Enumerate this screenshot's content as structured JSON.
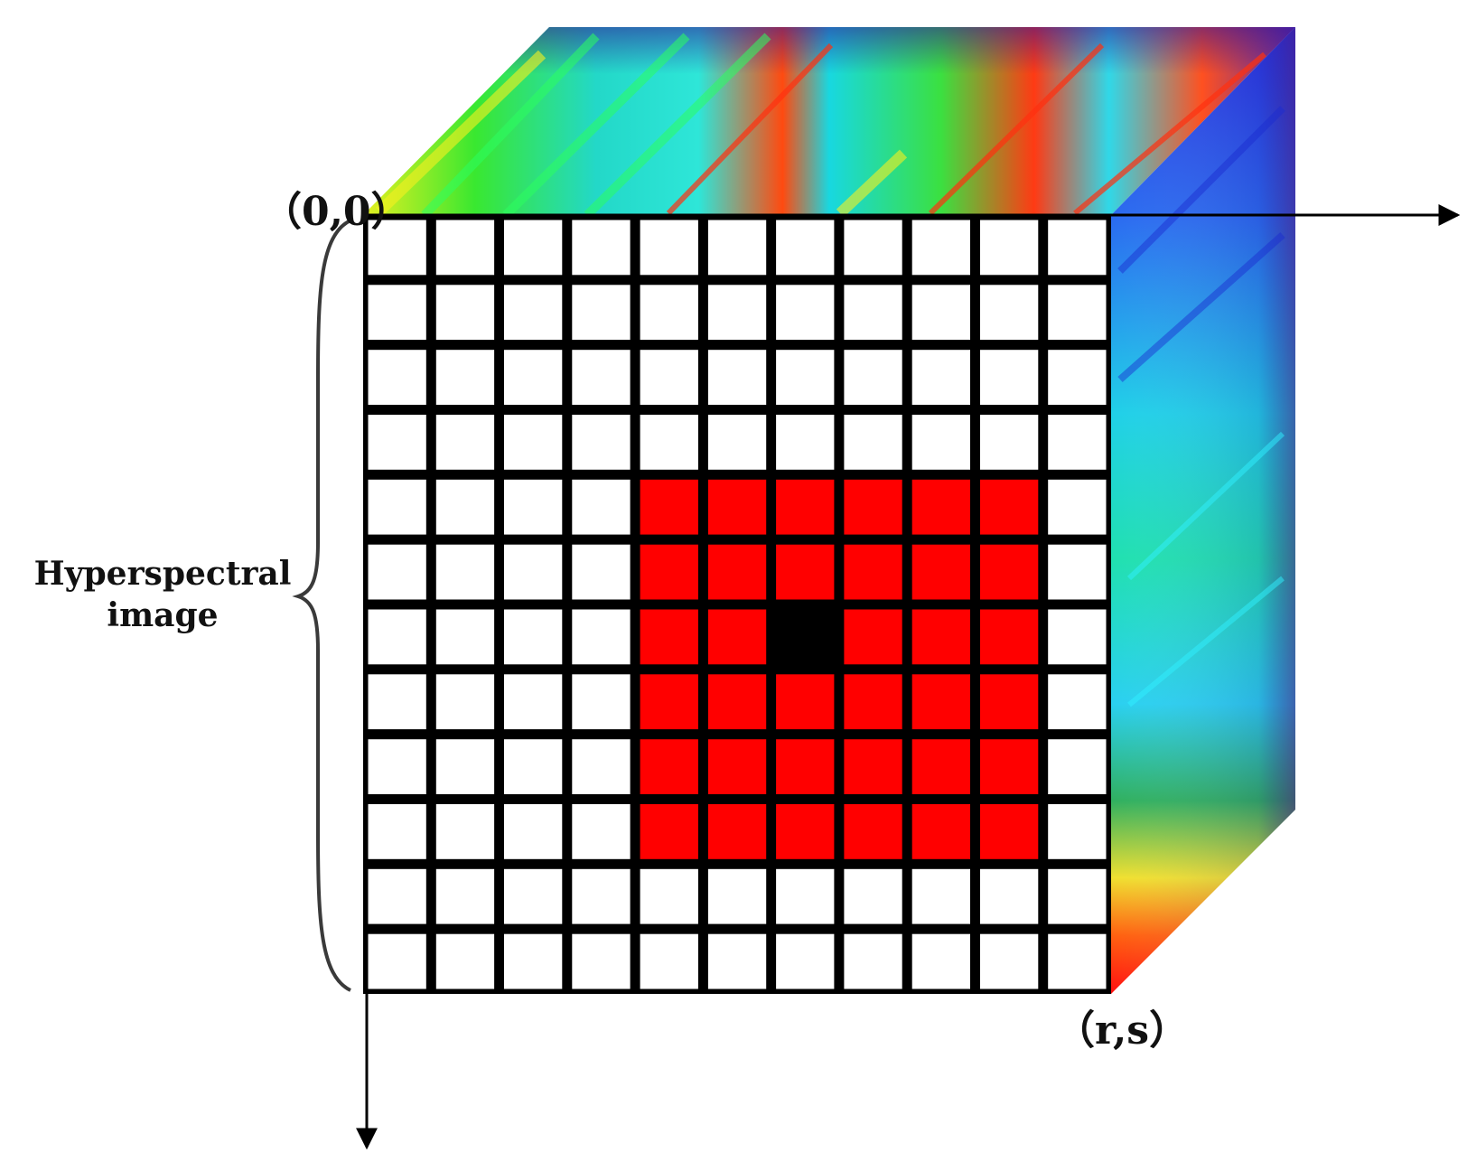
{
  "labels": {
    "origin": "（0,0）",
    "corner": "（r,s）",
    "cube_line1": "Hyperspectral",
    "cube_line2": "image"
  },
  "grid": {
    "rows": 12,
    "cols": 11,
    "highlight_rows": [
      4,
      9
    ],
    "highlight_cols": [
      4,
      9
    ],
    "center_cell": [
      6,
      6
    ]
  },
  "colors": {
    "grid_line": "#000000",
    "cell_default": "#ffffff",
    "cell_neighborhood": "#ff0000",
    "cell_center": "#000000",
    "brace": "#3a3a3a"
  }
}
